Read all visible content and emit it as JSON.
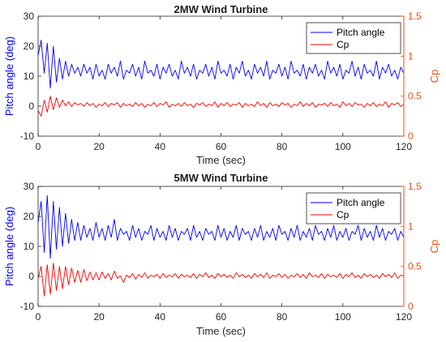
{
  "chart_data": [
    {
      "type": "line",
      "title": "2MW Wind Turbine",
      "xlabel": "Time (sec)",
      "ylabel_left": "Pitch angle (deg)",
      "ylabel_right": "Cp",
      "xlim": [
        0,
        120
      ],
      "ylim_left": [
        -10,
        30
      ],
      "ylim_right": [
        0,
        1.5
      ],
      "xticks": [
        "0",
        "20",
        "40",
        "60",
        "80",
        "100",
        "120"
      ],
      "yticks_left": [
        "-10",
        "0",
        "10",
        "20",
        "30"
      ],
      "yticks_right": [
        "0",
        "0.5",
        "1",
        "1.5"
      ],
      "grid": false,
      "legend_position": "top-right",
      "series": [
        {
          "name": "Pitch angle",
          "axis": "left",
          "color": "#0000ff",
          "x": [
            0,
            1,
            2,
            3,
            4,
            5,
            6,
            7,
            8,
            9,
            10,
            11,
            12,
            13,
            14,
            15,
            16,
            17,
            18,
            19,
            20,
            21,
            22,
            23,
            24,
            25,
            26,
            27,
            28,
            29,
            30,
            31,
            32,
            33,
            34,
            35,
            36,
            37,
            38,
            39,
            40,
            41,
            42,
            43,
            44,
            45,
            46,
            47,
            48,
            49,
            50,
            51,
            52,
            53,
            54,
            55,
            56,
            57,
            58,
            59,
            60,
            61,
            62,
            63,
            64,
            65,
            66,
            67,
            68,
            69,
            70,
            71,
            72,
            73,
            74,
            75,
            76,
            77,
            78,
            79,
            80,
            81,
            82,
            83,
            84,
            85,
            86,
            87,
            88,
            89,
            90,
            91,
            92,
            93,
            94,
            95,
            96,
            97,
            98,
            99,
            100,
            101,
            102,
            103,
            104,
            105,
            106,
            107,
            108,
            109,
            110,
            111,
            112,
            113,
            114,
            115,
            116,
            117,
            118,
            119,
            120
          ],
          "y": [
            17,
            22,
            11,
            21,
            6,
            20,
            8,
            16,
            9,
            15,
            10,
            14,
            11,
            13,
            10,
            14,
            11,
            13,
            9,
            14,
            10,
            12,
            9,
            14,
            11,
            13,
            10,
            15,
            9,
            12,
            11,
            14,
            10,
            13,
            9,
            15,
            11,
            12,
            10,
            14,
            9,
            13,
            11,
            14,
            10,
            12,
            9,
            15,
            11,
            13,
            10,
            14,
            9,
            12,
            11,
            14,
            10,
            13,
            9,
            15,
            11,
            12,
            10,
            14,
            9,
            13,
            11,
            15,
            10,
            12,
            9,
            14,
            11,
            13,
            10,
            15,
            9,
            12,
            11,
            14,
            10,
            13,
            9,
            15,
            11,
            12,
            10,
            14,
            9,
            13,
            11,
            14,
            10,
            12,
            9,
            15,
            11,
            13,
            10,
            14,
            9,
            12,
            11,
            15,
            10,
            13,
            9,
            14,
            11,
            12,
            10,
            15,
            9,
            13,
            11,
            14,
            10,
            12,
            9,
            13,
            11
          ]
        },
        {
          "name": "Cp",
          "axis": "right",
          "color": "#ff0000",
          "x": [
            0,
            1,
            2,
            3,
            4,
            5,
            6,
            7,
            8,
            9,
            10,
            11,
            12,
            13,
            14,
            15,
            16,
            17,
            18,
            19,
            20,
            21,
            22,
            23,
            24,
            25,
            26,
            27,
            28,
            29,
            30,
            31,
            32,
            33,
            34,
            35,
            36,
            37,
            38,
            39,
            40,
            41,
            42,
            43,
            44,
            45,
            46,
            47,
            48,
            49,
            50,
            51,
            52,
            53,
            54,
            55,
            56,
            57,
            58,
            59,
            60,
            61,
            62,
            63,
            64,
            65,
            66,
            67,
            68,
            69,
            70,
            71,
            72,
            73,
            74,
            75,
            76,
            77,
            78,
            79,
            80,
            81,
            82,
            83,
            84,
            85,
            86,
            87,
            88,
            89,
            90,
            91,
            92,
            93,
            94,
            95,
            96,
            97,
            98,
            99,
            100,
            101,
            102,
            103,
            104,
            105,
            106,
            107,
            108,
            109,
            110,
            111,
            112,
            113,
            114,
            115,
            116,
            117,
            118,
            119,
            120
          ],
          "y": [
            0.32,
            0.25,
            0.45,
            0.3,
            0.5,
            0.33,
            0.48,
            0.36,
            0.45,
            0.38,
            0.43,
            0.37,
            0.42,
            0.39,
            0.41,
            0.37,
            0.42,
            0.38,
            0.41,
            0.36,
            0.4,
            0.38,
            0.42,
            0.37,
            0.41,
            0.39,
            0.42,
            0.36,
            0.41,
            0.38,
            0.4,
            0.37,
            0.42,
            0.38,
            0.41,
            0.36,
            0.4,
            0.38,
            0.42,
            0.37,
            0.41,
            0.39,
            0.43,
            0.36,
            0.4,
            0.38,
            0.41,
            0.37,
            0.42,
            0.38,
            0.4,
            0.36,
            0.41,
            0.39,
            0.42,
            0.37,
            0.4,
            0.38,
            0.43,
            0.36,
            0.41,
            0.38,
            0.42,
            0.37,
            0.4,
            0.39,
            0.42,
            0.36,
            0.41,
            0.38,
            0.4,
            0.37,
            0.43,
            0.38,
            0.41,
            0.36,
            0.42,
            0.38,
            0.4,
            0.37,
            0.42,
            0.39,
            0.41,
            0.36,
            0.4,
            0.38,
            0.43,
            0.37,
            0.41,
            0.38,
            0.42,
            0.36,
            0.4,
            0.39,
            0.41,
            0.37,
            0.42,
            0.38,
            0.4,
            0.36,
            0.43,
            0.38,
            0.41,
            0.37,
            0.42,
            0.39,
            0.4,
            0.36,
            0.41,
            0.38,
            0.42,
            0.37,
            0.4,
            0.38,
            0.43,
            0.36,
            0.41,
            0.39,
            0.42,
            0.37,
            0.4
          ]
        }
      ]
    },
    {
      "type": "line",
      "title": "5MW Wind Turbine",
      "xlabel": "Time (sec)",
      "ylabel_left": "Pitch angle (deg)",
      "ylabel_right": "Cp",
      "xlim": [
        0,
        120
      ],
      "ylim_left": [
        -10,
        30
      ],
      "ylim_right": [
        0,
        1.5
      ],
      "xticks": [
        "0",
        "20",
        "40",
        "60",
        "80",
        "100",
        "120"
      ],
      "yticks_left": [
        "-10",
        "0",
        "10",
        "20",
        "30"
      ],
      "yticks_right": [
        "0",
        "0.5",
        "1",
        "1.5"
      ],
      "grid": false,
      "legend_position": "top-right",
      "series": [
        {
          "name": "Pitch angle",
          "axis": "left",
          "color": "#0000ff",
          "x": [
            0,
            1,
            2,
            3,
            4,
            5,
            6,
            7,
            8,
            9,
            10,
            11,
            12,
            13,
            14,
            15,
            16,
            17,
            18,
            19,
            20,
            21,
            22,
            23,
            24,
            25,
            26,
            27,
            28,
            29,
            30,
            31,
            32,
            33,
            34,
            35,
            36,
            37,
            38,
            39,
            40,
            41,
            42,
            43,
            44,
            45,
            46,
            47,
            48,
            49,
            50,
            51,
            52,
            53,
            54,
            55,
            56,
            57,
            58,
            59,
            60,
            61,
            62,
            63,
            64,
            65,
            66,
            67,
            68,
            69,
            70,
            71,
            72,
            73,
            74,
            75,
            76,
            77,
            78,
            79,
            80,
            81,
            82,
            83,
            84,
            85,
            86,
            87,
            88,
            89,
            90,
            91,
            92,
            93,
            94,
            95,
            96,
            97,
            98,
            99,
            100,
            101,
            102,
            103,
            104,
            105,
            106,
            107,
            108,
            109,
            110,
            111,
            112,
            113,
            114,
            115,
            116,
            117,
            118,
            119,
            120
          ],
          "y": [
            18,
            25,
            8,
            27,
            6,
            25,
            9,
            23,
            10,
            21,
            11,
            19,
            12,
            18,
            12,
            17,
            13,
            16,
            12,
            18,
            13,
            16,
            12,
            17,
            13,
            19,
            12,
            16,
            14,
            15,
            12,
            17,
            13,
            16,
            12,
            15,
            14,
            17,
            12,
            16,
            13,
            15,
            12,
            17,
            13,
            16,
            12,
            15,
            14,
            16,
            12,
            17,
            13,
            15,
            12,
            16,
            14,
            15,
            12,
            17,
            13,
            16,
            12,
            15,
            13,
            17,
            12,
            16,
            14,
            15,
            12,
            16,
            13,
            17,
            12,
            15,
            13,
            16,
            12,
            17,
            14,
            15,
            12,
            16,
            13,
            17,
            12,
            15,
            13,
            16,
            12,
            17,
            14,
            15,
            12,
            16,
            13,
            17,
            12,
            15,
            13,
            16,
            12,
            15,
            14,
            17,
            12,
            16,
            13,
            15,
            12,
            17,
            13,
            16,
            12,
            15,
            14,
            16,
            12,
            15,
            13
          ]
        },
        {
          "name": "Cp",
          "axis": "right",
          "color": "#ff0000",
          "x": [
            0,
            1,
            2,
            3,
            4,
            5,
            6,
            7,
            8,
            9,
            10,
            11,
            12,
            13,
            14,
            15,
            16,
            17,
            18,
            19,
            20,
            21,
            22,
            23,
            24,
            25,
            26,
            27,
            28,
            29,
            30,
            31,
            32,
            33,
            34,
            35,
            36,
            37,
            38,
            39,
            40,
            41,
            42,
            43,
            44,
            45,
            46,
            47,
            48,
            49,
            50,
            51,
            52,
            53,
            54,
            55,
            56,
            57,
            58,
            59,
            60,
            61,
            62,
            63,
            64,
            65,
            66,
            67,
            68,
            69,
            70,
            71,
            72,
            73,
            74,
            75,
            76,
            77,
            78,
            79,
            80,
            81,
            82,
            83,
            84,
            85,
            86,
            87,
            88,
            89,
            90,
            91,
            92,
            93,
            94,
            95,
            96,
            97,
            98,
            99,
            100,
            101,
            102,
            103,
            104,
            105,
            106,
            107,
            108,
            109,
            110,
            111,
            112,
            113,
            114,
            115,
            116,
            117,
            118,
            119,
            120
          ],
          "y": [
            0.35,
            0.5,
            0.13,
            0.52,
            0.15,
            0.54,
            0.2,
            0.5,
            0.22,
            0.5,
            0.27,
            0.48,
            0.3,
            0.45,
            0.3,
            0.46,
            0.32,
            0.43,
            0.33,
            0.42,
            0.33,
            0.43,
            0.35,
            0.41,
            0.33,
            0.44,
            0.35,
            0.38,
            0.3,
            0.39,
            0.36,
            0.41,
            0.34,
            0.4,
            0.36,
            0.42,
            0.35,
            0.39,
            0.37,
            0.4,
            0.35,
            0.41,
            0.36,
            0.39,
            0.37,
            0.41,
            0.35,
            0.4,
            0.37,
            0.39,
            0.36,
            0.41,
            0.35,
            0.4,
            0.37,
            0.42,
            0.36,
            0.39,
            0.35,
            0.41,
            0.37,
            0.4,
            0.36,
            0.39,
            0.35,
            0.42,
            0.37,
            0.4,
            0.36,
            0.39,
            0.35,
            0.41,
            0.37,
            0.4,
            0.36,
            0.42,
            0.35,
            0.39,
            0.37,
            0.41,
            0.36,
            0.4,
            0.35,
            0.39,
            0.37,
            0.41,
            0.36,
            0.4,
            0.35,
            0.42,
            0.37,
            0.39,
            0.36,
            0.41,
            0.35,
            0.4,
            0.37,
            0.39,
            0.36,
            0.41,
            0.35,
            0.4,
            0.37,
            0.42,
            0.36,
            0.39,
            0.35,
            0.41,
            0.37,
            0.4,
            0.36,
            0.39,
            0.35,
            0.41,
            0.37,
            0.4,
            0.36,
            0.42,
            0.35,
            0.39,
            0.38
          ]
        }
      ]
    }
  ]
}
